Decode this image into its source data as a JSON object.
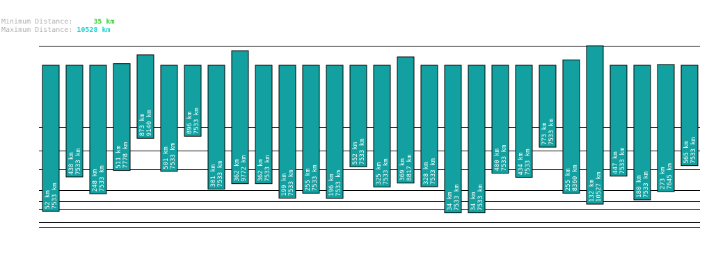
{
  "summary": {
    "min_label": "Minimum Distance:",
    "min_value": "35 km",
    "min_color": "#3ad13a",
    "max_label": "Maximum Distance:",
    "max_value": "10528 km",
    "max_color": "#19d3d3"
  },
  "colors": {
    "bar": "#12a1a0",
    "line": "#000000"
  },
  "chart_data": {
    "type": "bar",
    "bars": [
      {
        "a": 52,
        "b": 7533
      },
      {
        "a": 438,
        "b": 7533
      },
      {
        "a": 248,
        "b": 7533
      },
      {
        "a": 511,
        "b": 7778
      },
      {
        "a": 873,
        "b": 9140
      },
      {
        "a": 501,
        "b": 7533
      },
      {
        "a": 896,
        "b": 7533
      },
      {
        "a": 301,
        "b": 7533
      },
      {
        "a": 362,
        "b": 9772
      },
      {
        "a": 362,
        "b": 7533
      },
      {
        "a": 199,
        "b": 7533
      },
      {
        "a": 255,
        "b": 7533
      },
      {
        "a": 196,
        "b": 7533
      },
      {
        "a": 552,
        "b": 7533
      },
      {
        "a": 325,
        "b": 7533
      },
      {
        "a": 369,
        "b": 8817
      },
      {
        "a": 328,
        "b": 7533
      },
      {
        "a": 34,
        "b": 7533
      },
      {
        "a": 34,
        "b": 7533
      },
      {
        "a": 480,
        "b": 7533
      },
      {
        "a": 434,
        "b": 7533
      },
      {
        "a": 773,
        "b": 7533
      },
      {
        "a": 255,
        "b": 8360
      },
      {
        "a": 132,
        "b": 10527
      },
      {
        "a": 447,
        "b": 7533
      },
      {
        "a": 180,
        "b": 7533
      },
      {
        "a": 273,
        "b": 7645
      },
      {
        "a": 565,
        "b": 7533
      }
    ],
    "unit": "km"
  }
}
